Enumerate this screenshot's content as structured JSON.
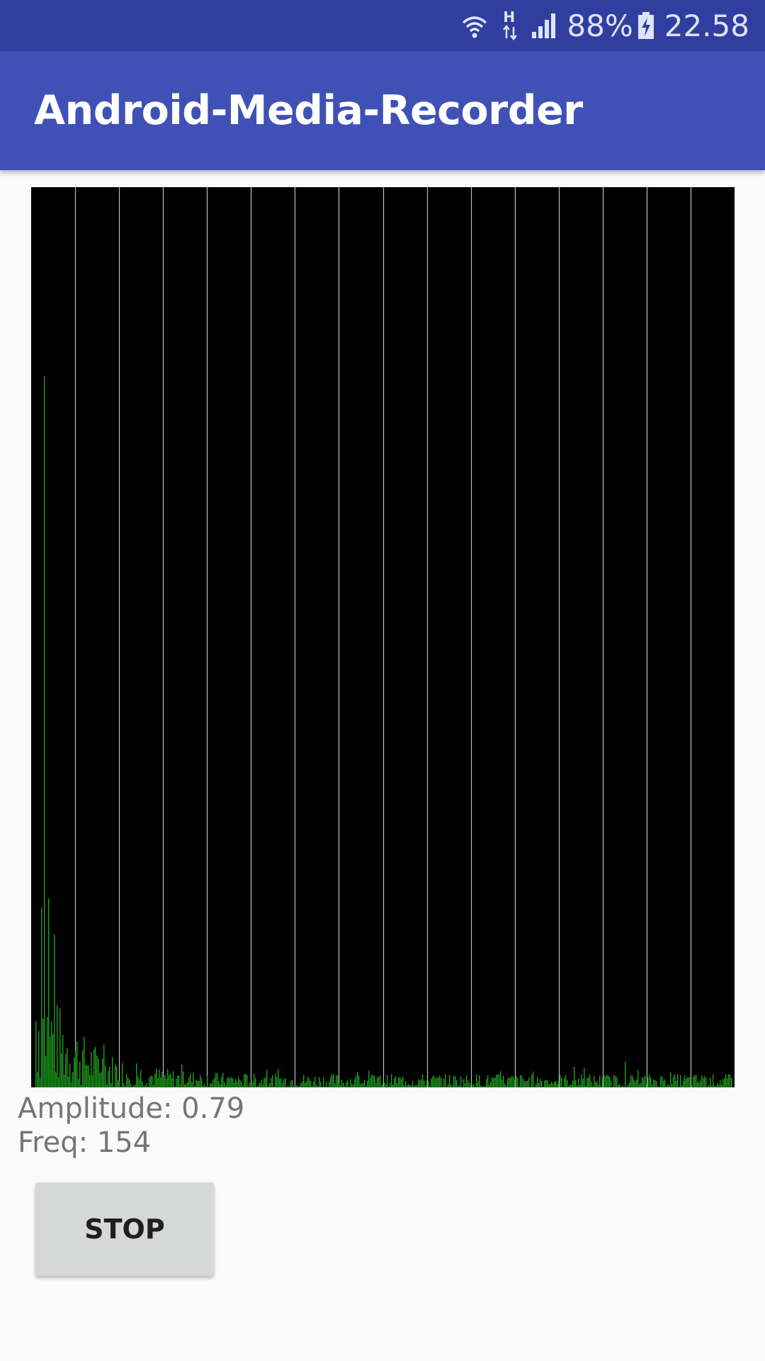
{
  "status_bar": {
    "battery": "88%",
    "time": "22.58",
    "network_type": "H",
    "icons": [
      "wifi-icon",
      "network-type-icon",
      "signal-icon",
      "battery-charging-icon"
    ]
  },
  "app_bar": {
    "title": "Android-Media-Recorder",
    "background_color": "#3f51b5",
    "status_color": "#303f9f"
  },
  "spectrum": {
    "background_color": "#000000",
    "grid_color": "#bdbdbd",
    "bar_color": "#1e9e1e",
    "vertical_grid_lines": 16
  },
  "readouts": {
    "amplitude": "Amplitude: 0.79",
    "freq": "Freq: 154"
  },
  "controls": {
    "stop_label": "STOP"
  }
}
